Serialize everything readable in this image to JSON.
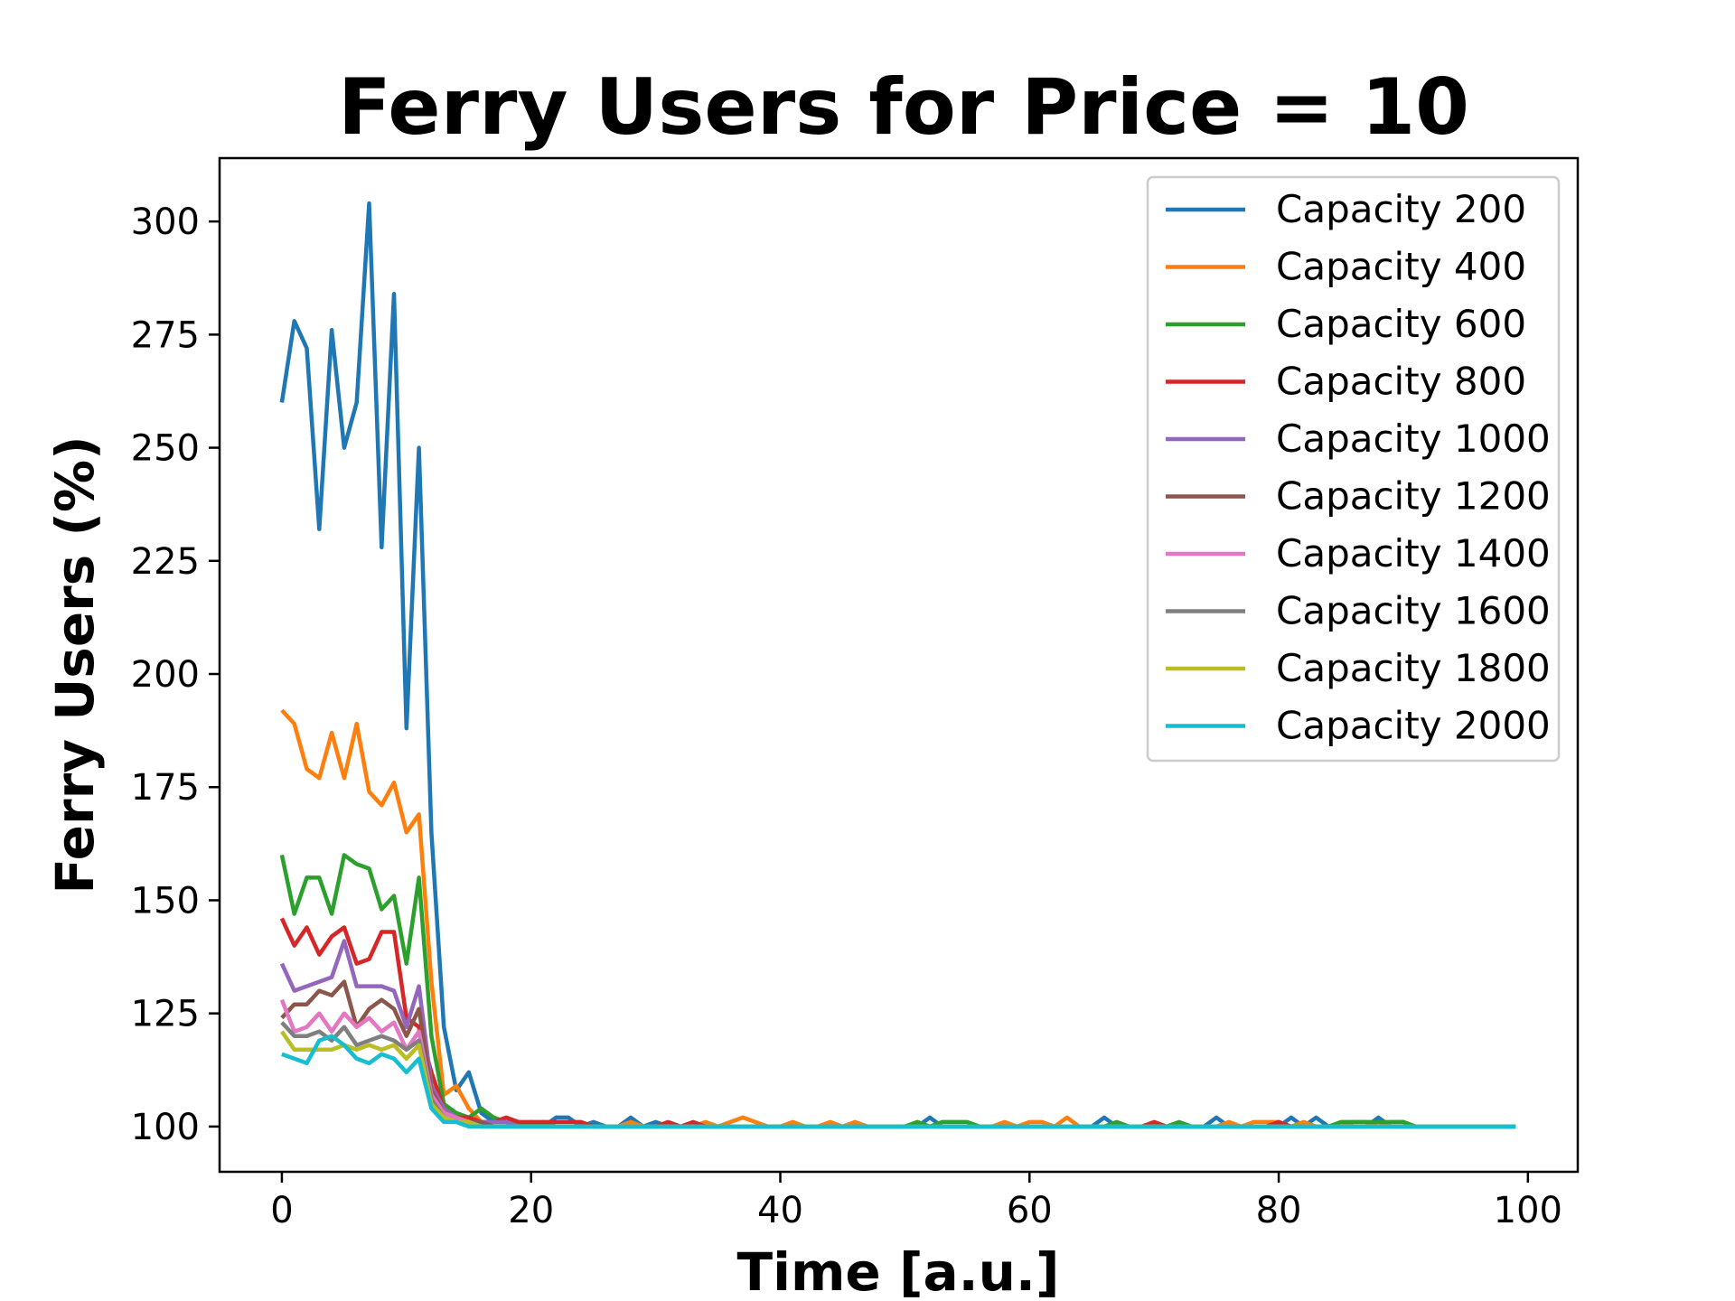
{
  "chart_data": {
    "type": "line",
    "title": "Ferry Users for Price = 10",
    "xlabel": "Time [a.u.]",
    "ylabel": "Ferry Users (%)",
    "xlim": [
      -5,
      104
    ],
    "ylim": [
      90,
      314
    ],
    "xticks": [
      0,
      20,
      40,
      60,
      80,
      100
    ],
    "yticks": [
      100,
      125,
      150,
      175,
      200,
      225,
      250,
      275,
      300
    ],
    "grid": false,
    "legend_position": "upper-right",
    "series": [
      {
        "name": "Capacity 200",
        "color": "#1f77b4",
        "values": [
          260,
          278,
          272,
          232,
          276,
          250,
          260,
          304,
          228,
          284,
          188,
          250,
          165,
          122,
          108,
          112,
          103,
          101,
          101,
          100,
          101,
          100,
          102,
          102,
          100,
          101,
          100,
          100,
          102,
          100,
          101,
          100,
          100,
          100,
          100,
          100,
          100,
          100,
          100,
          100,
          100,
          100,
          100,
          100,
          100,
          100,
          100,
          100,
          100,
          100,
          100,
          100,
          102,
          100,
          100,
          100,
          100,
          100,
          100,
          100,
          100,
          100,
          100,
          100,
          100,
          100,
          102,
          100,
          100,
          100,
          100,
          100,
          100,
          100,
          100,
          102,
          100,
          100,
          100,
          100,
          100,
          102,
          100,
          102,
          100,
          100,
          100,
          100,
          102,
          100,
          100,
          100,
          100,
          100,
          100,
          100,
          100,
          100,
          100,
          100
        ]
      },
      {
        "name": "Capacity 400",
        "color": "#ff7f0e",
        "values": [
          192,
          189,
          179,
          177,
          187,
          177,
          189,
          174,
          171,
          176,
          165,
          169,
          132,
          107,
          109,
          104,
          101,
          101,
          101,
          101,
          100,
          100,
          100,
          100,
          100,
          100,
          100,
          100,
          101,
          100,
          100,
          100,
          100,
          100,
          101,
          100,
          101,
          102,
          101,
          100,
          100,
          101,
          100,
          100,
          101,
          100,
          101,
          100,
          100,
          100,
          100,
          101,
          100,
          100,
          100,
          100,
          100,
          100,
          101,
          100,
          101,
          101,
          100,
          102,
          100,
          100,
          100,
          100,
          100,
          100,
          100,
          100,
          100,
          100,
          100,
          100,
          101,
          100,
          101,
          101,
          101,
          100,
          101,
          100,
          100,
          100,
          101,
          101,
          100,
          101,
          101,
          100,
          100,
          100,
          100,
          100,
          100,
          100,
          100,
          100
        ]
      },
      {
        "name": "Capacity 600",
        "color": "#2ca02c",
        "values": [
          160,
          147,
          155,
          155,
          147,
          160,
          158,
          157,
          148,
          151,
          136,
          155,
          120,
          105,
          103,
          102,
          104,
          102,
          101,
          101,
          100,
          101,
          100,
          100,
          100,
          100,
          100,
          100,
          100,
          100,
          100,
          100,
          100,
          100,
          100,
          100,
          100,
          100,
          100,
          100,
          100,
          100,
          100,
          100,
          100,
          100,
          100,
          100,
          100,
          100,
          100,
          101,
          100,
          101,
          101,
          101,
          100,
          100,
          100,
          100,
          100,
          100,
          100,
          100,
          100,
          100,
          100,
          101,
          100,
          100,
          100,
          100,
          101,
          100,
          100,
          100,
          100,
          100,
          100,
          100,
          100,
          100,
          100,
          100,
          100,
          101,
          101,
          101,
          101,
          101,
          101,
          100,
          100,
          100,
          100,
          100,
          100,
          100,
          100,
          100
        ]
      },
      {
        "name": "Capacity 800",
        "color": "#d62728",
        "values": [
          146,
          140,
          144,
          138,
          142,
          144,
          136,
          137,
          143,
          143,
          124,
          122,
          112,
          104,
          102,
          102,
          101,
          101,
          102,
          101,
          101,
          101,
          101,
          101,
          101,
          100,
          100,
          100,
          100,
          100,
          100,
          101,
          100,
          101,
          100,
          100,
          100,
          100,
          100,
          100,
          100,
          100,
          100,
          100,
          100,
          100,
          100,
          100,
          100,
          100,
          100,
          100,
          100,
          100,
          100,
          100,
          100,
          100,
          100,
          100,
          100,
          100,
          100,
          100,
          100,
          100,
          100,
          100,
          100,
          100,
          101,
          100,
          100,
          100,
          100,
          100,
          100,
          100,
          100,
          100,
          101,
          100,
          100,
          100,
          100,
          100,
          100,
          100,
          100,
          100,
          100,
          100,
          100,
          100,
          100,
          100,
          100,
          100,
          100,
          100
        ]
      },
      {
        "name": "Capacity 1000",
        "color": "#9467bd",
        "values": [
          136,
          130,
          131,
          132,
          133,
          141,
          131,
          131,
          131,
          130,
          122,
          131,
          109,
          104,
          102,
          101,
          101,
          101,
          101,
          100,
          100,
          100,
          100,
          100,
          100,
          100,
          100,
          100,
          100,
          100,
          100,
          100,
          100,
          100,
          100,
          100,
          100,
          100,
          100,
          100,
          100,
          100,
          100,
          100,
          100,
          100,
          100,
          100,
          100,
          100,
          100,
          100,
          100,
          100,
          100,
          100,
          100,
          100,
          100,
          100,
          100,
          100,
          100,
          100,
          100,
          100,
          100,
          100,
          100,
          100,
          100,
          100,
          100,
          100,
          100,
          100,
          100,
          100,
          100,
          100,
          100,
          100,
          100,
          100,
          100,
          100,
          100,
          100,
          100,
          100,
          100,
          100,
          100,
          100,
          100,
          100,
          100,
          100,
          100,
          100
        ]
      },
      {
        "name": "Capacity 1200",
        "color": "#8c564b",
        "values": [
          124,
          127,
          127,
          130,
          129,
          132,
          122,
          126,
          128,
          126,
          120,
          126,
          108,
          103,
          102,
          101,
          101,
          100,
          100,
          100,
          100,
          100,
          100,
          100,
          100,
          100,
          100,
          100,
          100,
          100,
          100,
          100,
          100,
          100,
          100,
          100,
          100,
          100,
          100,
          100,
          100,
          100,
          100,
          100,
          100,
          100,
          100,
          100,
          100,
          100,
          100,
          100,
          100,
          100,
          100,
          100,
          100,
          100,
          100,
          100,
          100,
          100,
          100,
          100,
          100,
          100,
          100,
          100,
          100,
          100,
          100,
          100,
          100,
          100,
          100,
          100,
          100,
          100,
          100,
          100,
          100,
          100,
          100,
          100,
          100,
          100,
          100,
          100,
          100,
          100,
          100,
          100,
          100,
          100,
          100,
          100,
          100,
          100,
          100,
          100
        ]
      },
      {
        "name": "Capacity 1400",
        "color": "#e377c2",
        "values": [
          128,
          121,
          122,
          125,
          121,
          125,
          122,
          124,
          121,
          123,
          117,
          121,
          107,
          103,
          102,
          101,
          100,
          100,
          100,
          100,
          100,
          100,
          100,
          100,
          100,
          100,
          100,
          100,
          100,
          100,
          100,
          100,
          100,
          100,
          100,
          100,
          100,
          100,
          100,
          100,
          100,
          100,
          100,
          100,
          100,
          100,
          100,
          100,
          100,
          100,
          100,
          100,
          100,
          100,
          100,
          100,
          100,
          100,
          100,
          100,
          100,
          100,
          100,
          100,
          100,
          100,
          100,
          100,
          100,
          100,
          100,
          100,
          100,
          100,
          100,
          100,
          100,
          100,
          100,
          100,
          100,
          100,
          100,
          100,
          100,
          100,
          100,
          100,
          100,
          100,
          100,
          100,
          100,
          100,
          100,
          100,
          100,
          100,
          100,
          100
        ]
      },
      {
        "name": "Capacity 1600",
        "color": "#7f7f7f",
        "values": [
          123,
          120,
          120,
          121,
          119,
          122,
          118,
          119,
          120,
          119,
          117,
          119,
          106,
          102,
          101,
          101,
          100,
          100,
          100,
          100,
          100,
          100,
          100,
          100,
          100,
          100,
          100,
          100,
          100,
          100,
          100,
          100,
          100,
          100,
          100,
          100,
          100,
          100,
          100,
          100,
          100,
          100,
          100,
          100,
          100,
          100,
          100,
          100,
          100,
          100,
          100,
          100,
          100,
          100,
          100,
          100,
          100,
          100,
          100,
          100,
          100,
          100,
          100,
          100,
          100,
          100,
          100,
          100,
          100,
          100,
          100,
          100,
          100,
          100,
          100,
          100,
          100,
          100,
          100,
          100,
          100,
          100,
          100,
          100,
          100,
          100,
          100,
          100,
          100,
          100,
          100,
          100,
          100,
          100,
          100,
          100,
          100,
          100,
          100,
          100
        ]
      },
      {
        "name": "Capacity 1800",
        "color": "#bcbd22",
        "values": [
          121,
          117,
          117,
          117,
          117,
          118,
          117,
          118,
          117,
          118,
          115,
          118,
          105,
          102,
          101,
          101,
          100,
          100,
          100,
          100,
          100,
          100,
          100,
          100,
          100,
          100,
          100,
          100,
          100,
          100,
          100,
          100,
          100,
          100,
          100,
          100,
          100,
          100,
          100,
          100,
          100,
          100,
          100,
          100,
          100,
          100,
          100,
          100,
          100,
          100,
          100,
          100,
          100,
          100,
          100,
          100,
          100,
          100,
          100,
          100,
          100,
          100,
          100,
          100,
          100,
          100,
          100,
          100,
          100,
          100,
          100,
          100,
          100,
          100,
          100,
          100,
          100,
          100,
          100,
          100,
          100,
          100,
          100,
          100,
          100,
          100,
          100,
          100,
          100,
          100,
          100,
          100,
          100,
          100,
          100,
          100,
          100,
          100,
          100,
          100
        ]
      },
      {
        "name": "Capacity 2000",
        "color": "#17becf",
        "values": [
          116,
          115,
          114,
          119,
          120,
          118,
          115,
          114,
          116,
          115,
          112,
          115,
          104,
          101,
          101,
          100,
          100,
          100,
          100,
          100,
          100,
          100,
          100,
          100,
          100,
          100,
          100,
          100,
          100,
          100,
          100,
          100,
          100,
          100,
          100,
          100,
          100,
          100,
          100,
          100,
          100,
          100,
          100,
          100,
          100,
          100,
          100,
          100,
          100,
          100,
          100,
          100,
          100,
          100,
          100,
          100,
          100,
          100,
          100,
          100,
          100,
          100,
          100,
          100,
          100,
          100,
          100,
          100,
          100,
          100,
          100,
          100,
          100,
          100,
          100,
          100,
          100,
          100,
          100,
          100,
          100,
          100,
          100,
          100,
          100,
          100,
          100,
          100,
          100,
          100,
          100,
          100,
          100,
          100,
          100,
          100,
          100,
          100,
          100,
          100
        ]
      }
    ]
  }
}
